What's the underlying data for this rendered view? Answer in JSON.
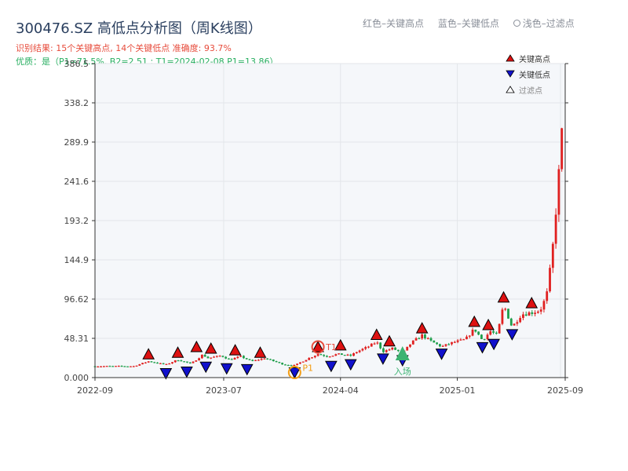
{
  "title": "300476.SZ 高低点分析图（周K线图）",
  "subtitle_result": "识别结果: 15个关键高点, 14个关键低点  准确度: 93.7%",
  "subtitle_quality": "优质：是（P1=71.5%, B2=2.51 ; T1=2024-02-08 P1=13.86）",
  "top_legend": {
    "red": "红色–关键高点",
    "blue": "蓝色–关键低点",
    "light": "浅色–过滤点"
  },
  "legend": {
    "high": "关键高点",
    "low": "关键低点",
    "filtered": "过滤点"
  },
  "colors": {
    "up": "#e02020",
    "down": "#1e9e4a",
    "high": "#dd1111",
    "low": "#1111cc",
    "entry": "#3cb371",
    "t1": "#e74c3c",
    "p1": "#f39c12"
  },
  "annotations": {
    "t1": "T1",
    "p1": "P1",
    "entry": "入场"
  },
  "chart_data": {
    "type": "candlestick",
    "title": "300476.SZ 高低点分析图（周K线图）",
    "xlabel": "",
    "ylabel": "",
    "ylim": [
      0,
      386.5
    ],
    "xlim": [
      "2022-09-01",
      "2025-09-12"
    ],
    "grid": true,
    "legend_position": "top-right",
    "y_ticks": [
      "0.000",
      "48.31",
      "96.62",
      "144.9",
      "193.2",
      "241.6",
      "289.9",
      "338.2",
      "386.5"
    ],
    "x_ticks": [
      "2022-09",
      "2023-07",
      "2024-04",
      "2025-01",
      "2025-09"
    ],
    "close_path": [
      [
        "2022-09-01",
        14
      ],
      [
        "2022-12-01",
        14
      ],
      [
        "2023-01-05",
        20
      ],
      [
        "2023-02-15",
        16
      ],
      [
        "2023-03-15",
        22
      ],
      [
        "2023-04-15",
        17
      ],
      [
        "2023-05-12",
        28
      ],
      [
        "2023-05-25",
        24
      ],
      [
        "2023-06-25",
        27
      ],
      [
        "2023-07-15",
        22
      ],
      [
        "2023-08-10",
        26
      ],
      [
        "2023-09-05",
        20
      ],
      [
        "2023-10-05",
        24
      ],
      [
        "2023-11-20",
        16
      ],
      [
        "2023-12-15",
        15
      ],
      [
        "2024-01-10",
        22
      ],
      [
        "2024-02-08",
        29
      ],
      [
        "2024-03-01",
        26
      ],
      [
        "2024-03-25",
        29
      ],
      [
        "2024-04-25",
        27
      ],
      [
        "2024-05-10",
        32
      ],
      [
        "2024-06-05",
        38
      ],
      [
        "2024-06-25",
        44
      ],
      [
        "2024-07-10",
        32
      ],
      [
        "2024-08-01",
        36
      ],
      [
        "2024-08-25",
        30
      ],
      [
        "2024-09-15",
        43
      ],
      [
        "2024-10-10",
        52
      ],
      [
        "2024-10-30",
        45
      ],
      [
        "2024-11-25",
        38
      ],
      [
        "2024-12-20",
        43
      ],
      [
        "2025-01-20",
        47
      ],
      [
        "2025-02-10",
        60
      ],
      [
        "2025-03-01",
        46
      ],
      [
        "2025-03-20",
        57
      ],
      [
        "2025-04-05",
        52
      ],
      [
        "2025-04-20",
        90
      ],
      [
        "2025-05-10",
        62
      ],
      [
        "2025-06-01",
        78
      ],
      [
        "2025-06-25",
        80
      ],
      [
        "2025-07-15",
        83
      ],
      [
        "2025-07-30",
        100
      ],
      [
        "2025-08-12",
        150
      ],
      [
        "2025-08-25",
        230
      ],
      [
        "2025-09-04",
        300
      ],
      [
        "2025-09-10",
        330
      ]
    ],
    "key_highs": [
      [
        "2023-01-05",
        20
      ],
      [
        "2023-03-15",
        22
      ],
      [
        "2023-04-28",
        29
      ],
      [
        "2023-06-01",
        27
      ],
      [
        "2023-07-28",
        25
      ],
      [
        "2023-09-25",
        22
      ],
      [
        "2024-02-08",
        29
      ],
      [
        "2024-04-01",
        31
      ],
      [
        "2024-06-25",
        44
      ],
      [
        "2024-07-25",
        36
      ],
      [
        "2024-10-10",
        52
      ],
      [
        "2025-02-10",
        60
      ],
      [
        "2025-03-15",
        56
      ],
      [
        "2025-04-20",
        90
      ],
      [
        "2025-06-25",
        83
      ]
    ],
    "key_lows": [
      [
        "2023-02-15",
        14
      ],
      [
        "2023-04-05",
        16
      ],
      [
        "2023-05-20",
        22
      ],
      [
        "2023-07-08",
        20
      ],
      [
        "2023-08-25",
        19
      ],
      [
        "2023-12-15",
        15
      ],
      [
        "2024-03-10",
        23
      ],
      [
        "2024-04-25",
        25
      ],
      [
        "2024-07-10",
        32
      ],
      [
        "2024-11-25",
        38
      ],
      [
        "2025-03-01",
        46
      ],
      [
        "2025-03-28",
        50
      ],
      [
        "2025-05-10",
        62
      ],
      [
        "2024-08-25",
        30
      ]
    ],
    "entry": [
      "2024-08-25",
      27
    ]
  }
}
